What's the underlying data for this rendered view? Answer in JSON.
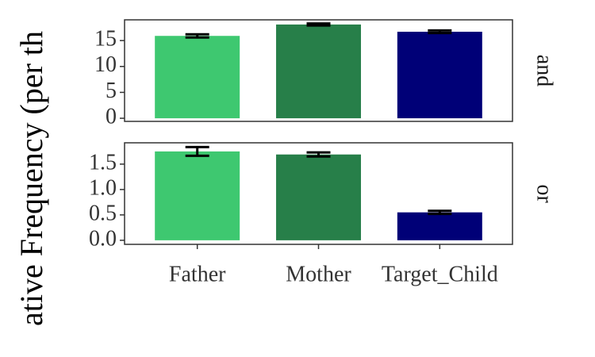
{
  "chart_data": {
    "type": "bar",
    "y_label": "ative Frequency (per th",
    "categories": [
      "Father",
      "Mother",
      "Target_Child"
    ],
    "colors": [
      "#3ec870",
      "#277f49",
      "#000077"
    ],
    "facets": [
      {
        "label": "and",
        "values": [
          15.9,
          18.1,
          16.7
        ],
        "errors": [
          0.3,
          0.2,
          0.25
        ],
        "ylim": [
          -0.6,
          19.0
        ],
        "yticks": [
          0,
          5,
          10,
          15
        ]
      },
      {
        "label": "or",
        "values": [
          1.75,
          1.69,
          0.55
        ],
        "errors": [
          0.086,
          0.04,
          0.03
        ],
        "ylim": [
          -0.08,
          1.92
        ],
        "yticks": [
          {
            "value": 0,
            "label": "0.0"
          },
          {
            "value": 0.5,
            "label": "0.5"
          },
          {
            "value": 1,
            "label": "1.0"
          },
          {
            "value": 1.5,
            "label": "1.5"
          }
        ]
      }
    ]
  }
}
